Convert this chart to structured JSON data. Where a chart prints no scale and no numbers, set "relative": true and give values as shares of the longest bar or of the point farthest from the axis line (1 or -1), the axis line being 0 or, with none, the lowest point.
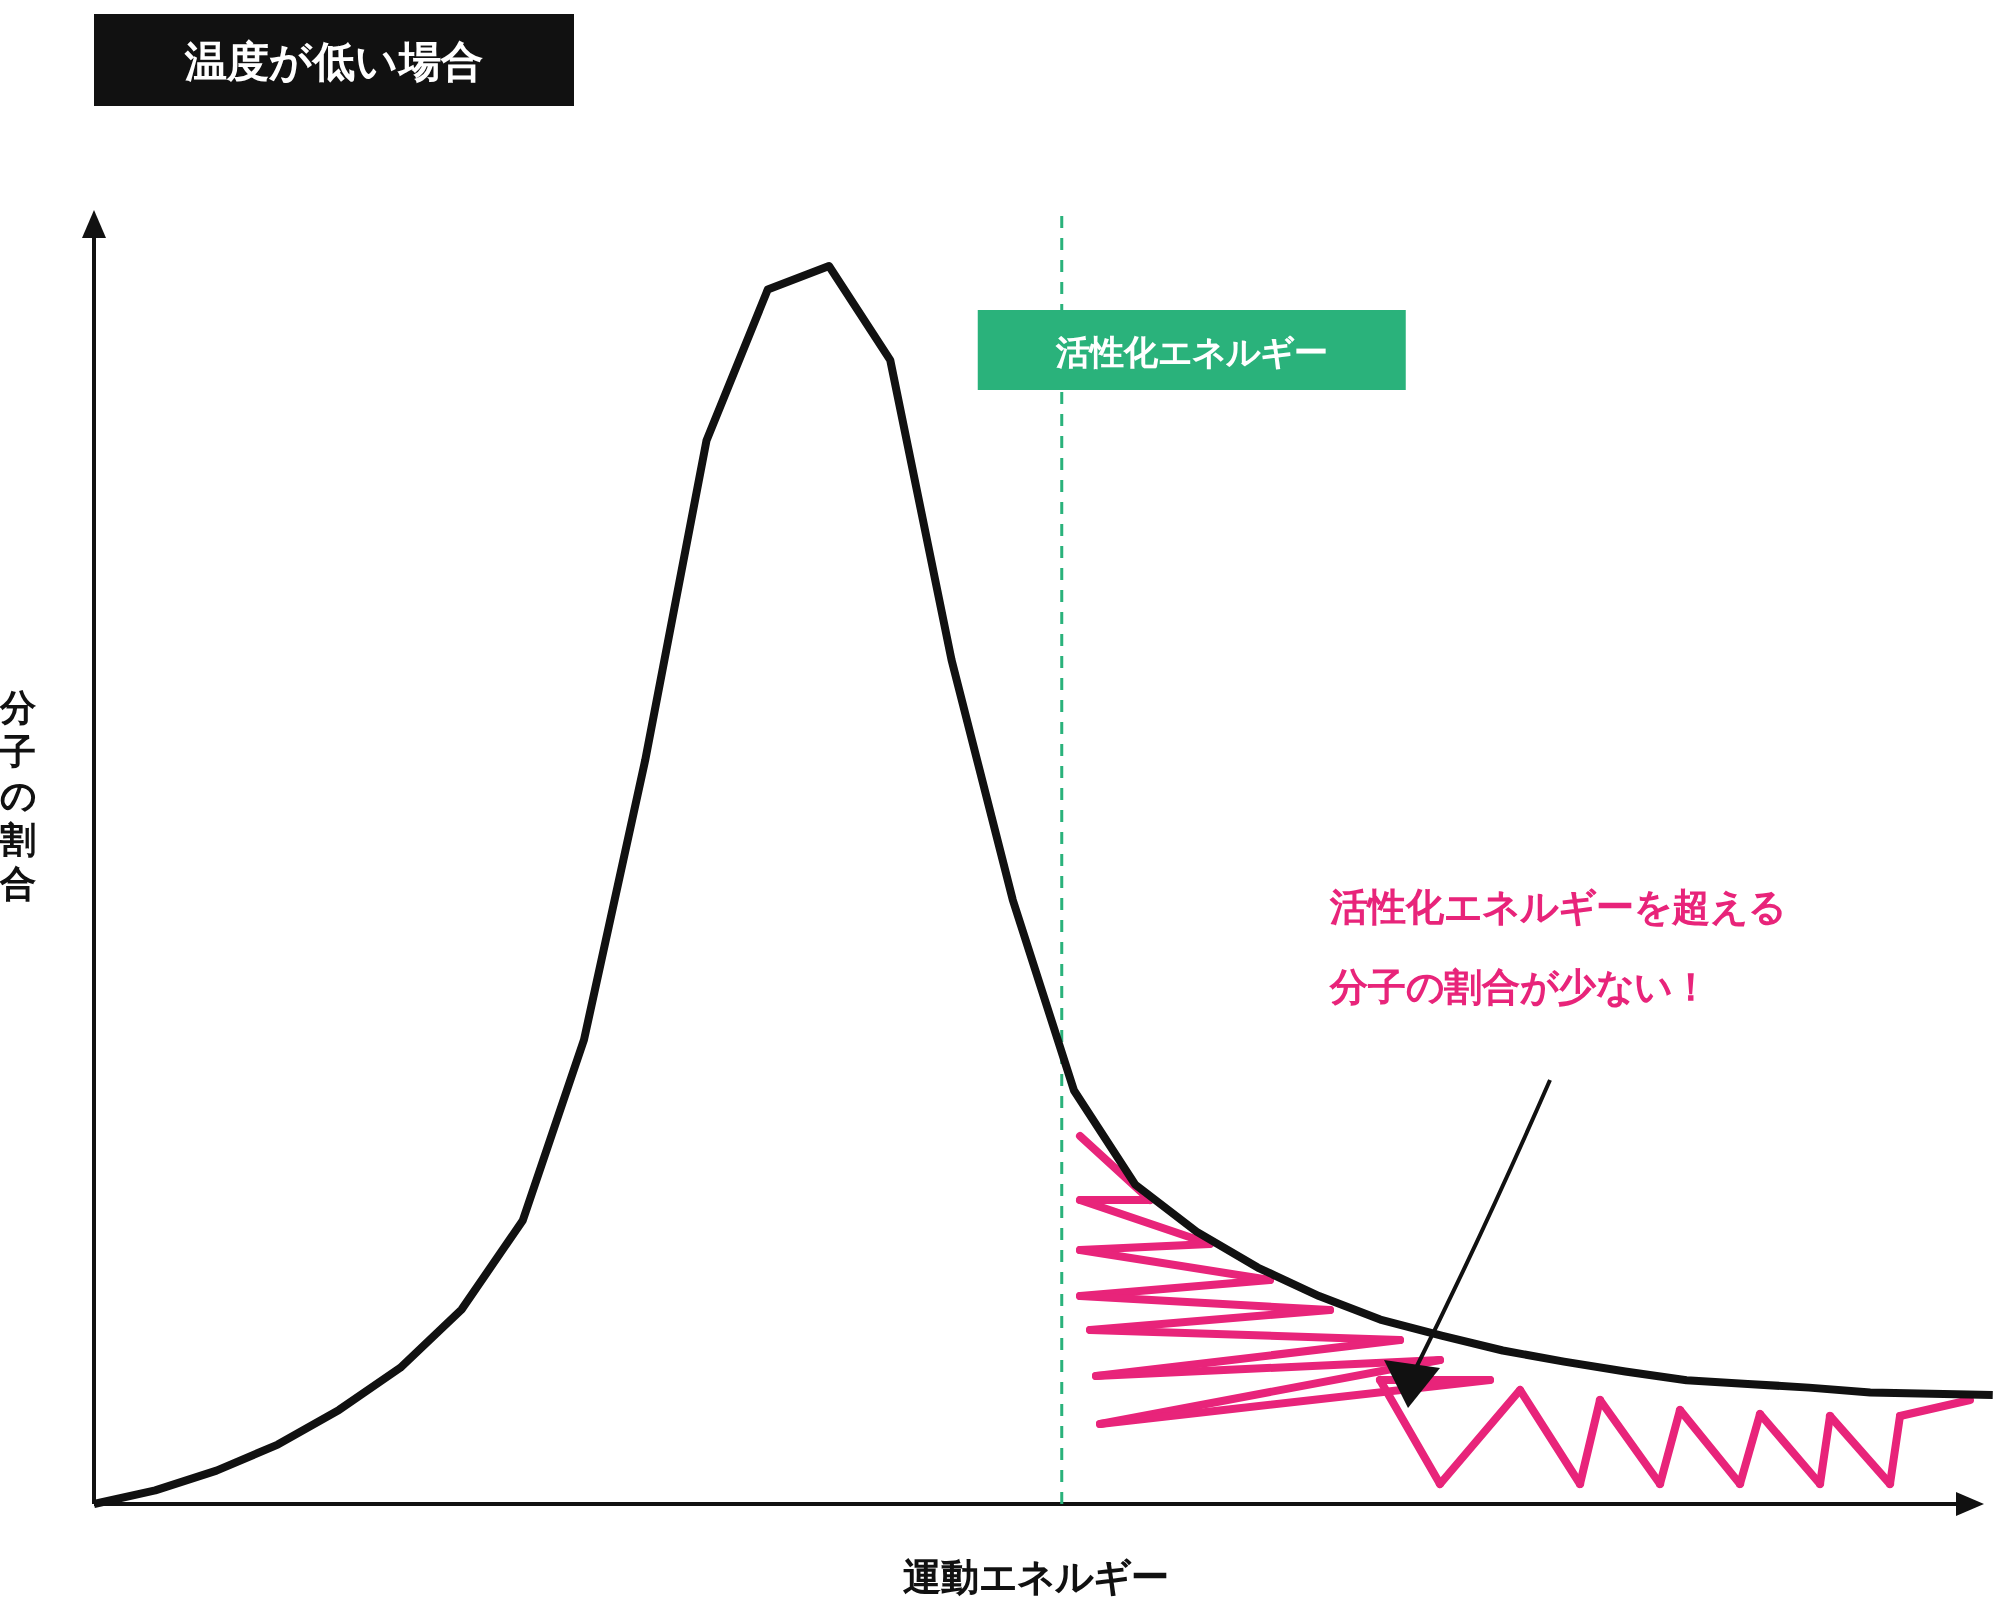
{
  "chart_data": {
    "type": "line",
    "relative": true,
    "title": "温度が低い場合",
    "xlabel": "運動エネルギー",
    "ylabel": "分子の割合",
    "categories": [
      null,
      null,
      null,
      null,
      null,
      null,
      null,
      null,
      null,
      null,
      null,
      null,
      null,
      null,
      null,
      null,
      null,
      null,
      null,
      null,
      null,
      null,
      null,
      null,
      null,
      null,
      null,
      null,
      null,
      null,
      null,
      null
    ],
    "series": [
      {
        "color": "#111111",
        "values": [
          0,
          0.011,
          0.027,
          0.048,
          0.076,
          0.11,
          0.157,
          0.229,
          0.375,
          0.601,
          0.859,
          0.981,
          1,
          0.924,
          0.682,
          0.488,
          0.334,
          0.258,
          0.22,
          0.191,
          0.168,
          0.149,
          0.136,
          0.124,
          0.115,
          0.107,
          0.1,
          0.097,
          0.094,
          0.09,
          0.089,
          0.088
        ]
      }
    ],
    "annotations": [
      "活性化エネルギー",
      "活性化エネルギーを超える分子の割合が少ない！"
    ],
    "line_style": "solid"
  }
}
